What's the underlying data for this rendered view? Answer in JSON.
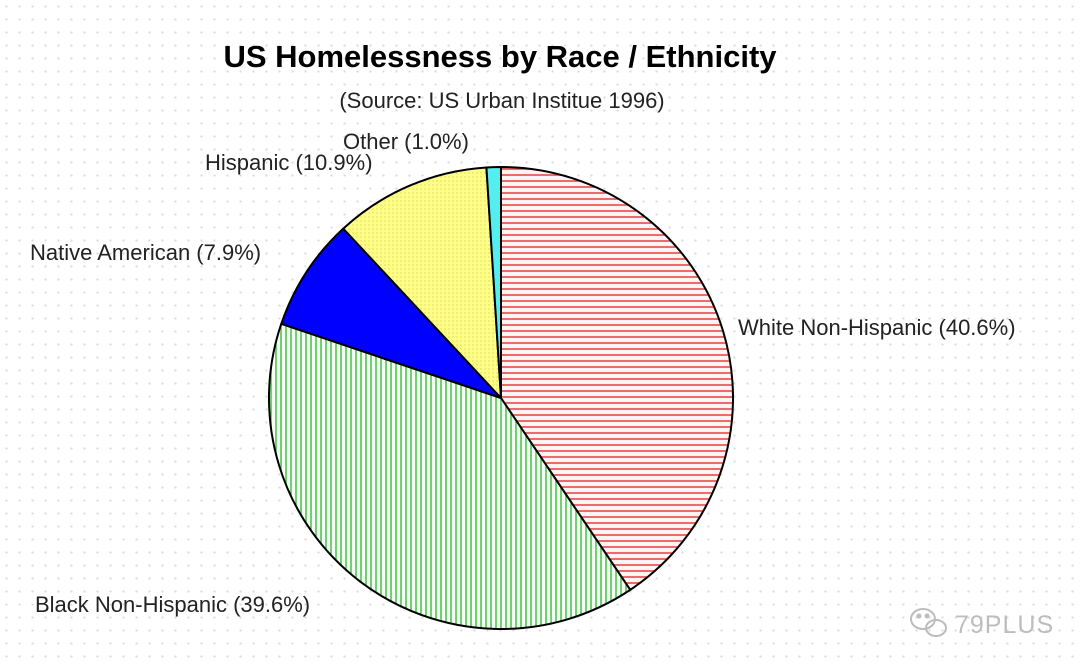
{
  "chart_data": {
    "type": "pie",
    "title": "US Homelessness by Race / Ethnicity",
    "subtitle": "(Source: US Urban Institue 1996)",
    "start_angle_deg": 0,
    "direction": "clockwise",
    "slices": [
      {
        "label": "White Non-Hispanic (40.6%)",
        "value": 40.6,
        "color": "#ee4444",
        "fill": "#fff3f3",
        "pattern": "horizontal-lines"
      },
      {
        "label": "Black Non-Hispanic (39.6%)",
        "value": 39.6,
        "color": "#44bb44",
        "fill": "#f2fff2",
        "pattern": "vertical-lines"
      },
      {
        "label": "Native American (7.9%)",
        "value": 7.9,
        "color": "#0000ff",
        "fill": "#0000ff",
        "pattern": "solid"
      },
      {
        "label": "Hispanic (10.9%)",
        "value": 10.9,
        "color": "#cccc55",
        "fill": "#ffff88",
        "pattern": "dots"
      },
      {
        "label": "Other (1.0%)",
        "value": 1.0,
        "color": "#33dddd",
        "fill": "#55eeee",
        "pattern": "solid"
      }
    ]
  },
  "watermark": {
    "text": "79PLUS",
    "icon": "wechat-icon"
  }
}
